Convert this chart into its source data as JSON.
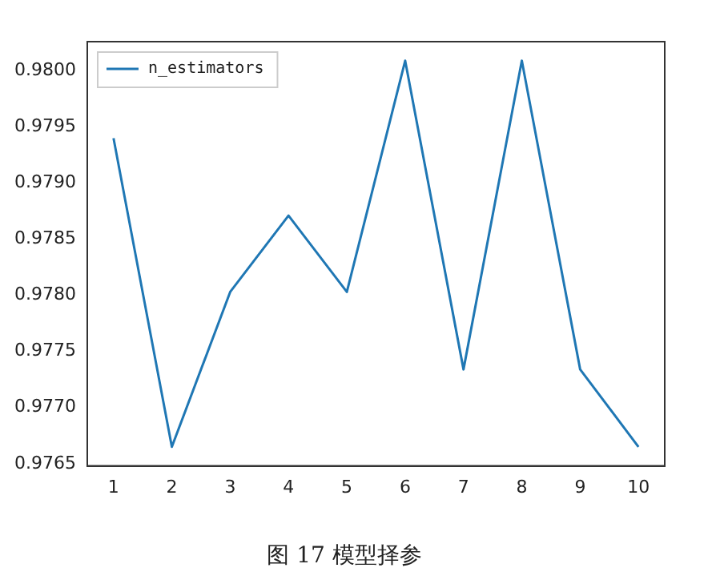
{
  "chart_data": {
    "type": "line",
    "x": [
      1,
      2,
      3,
      4,
      5,
      6,
      7,
      8,
      9,
      10
    ],
    "series": [
      {
        "name": "n_estimators",
        "color": "#1f77b4",
        "values": [
          0.9794,
          0.97665,
          0.97803,
          0.97871,
          0.97803,
          0.98009,
          0.97734,
          0.98009,
          0.97734,
          0.97665
        ]
      }
    ],
    "xlim": [
      0.55,
      10.45
    ],
    "xticks": [
      1,
      2,
      3,
      4,
      5,
      6,
      7,
      8,
      9,
      10
    ],
    "ylim": [
      0.97648,
      0.98026
    ],
    "yticks": [
      {
        "value": 0.9765,
        "label": "0.9765"
      },
      {
        "value": 0.977,
        "label": "0.9770"
      },
      {
        "value": 0.9775,
        "label": "0.9775"
      },
      {
        "value": 0.978,
        "label": "0.9780"
      },
      {
        "value": 0.9785,
        "label": "0.9785"
      },
      {
        "value": 0.979,
        "label": "0.9790"
      },
      {
        "value": 0.9795,
        "label": "0.9795"
      },
      {
        "value": 0.98,
        "label": "0.9800"
      }
    ],
    "legend": "top left",
    "grid": false,
    "marker": "none",
    "line_style": "solid",
    "annotations": [
      "图 17 模型择参"
    ]
  }
}
